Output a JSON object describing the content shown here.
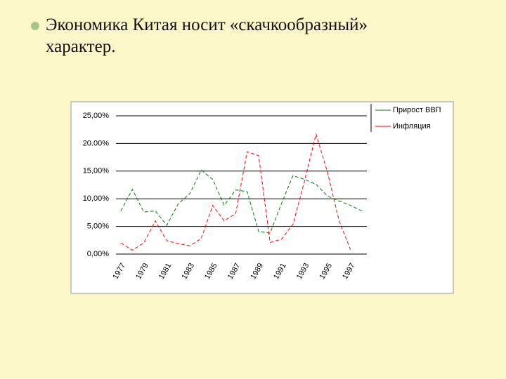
{
  "slide": {
    "bullet": "Экономика Китая носит «скачкообразный» характер."
  },
  "chart_data": {
    "type": "line",
    "categories": [
      "1977",
      null,
      "1979",
      null,
      "1981",
      null,
      "1983",
      null,
      "1985",
      null,
      "1987",
      null,
      "1989",
      null,
      "1991",
      null,
      "1993",
      null,
      "1995",
      null,
      "1997",
      null
    ],
    "series": [
      {
        "name": "Прирост ВВП",
        "color": "#008000",
        "values": [
          7.8,
          11.7,
          7.6,
          7.8,
          5.2,
          9.1,
          10.9,
          15.2,
          13.5,
          8.8,
          11.6,
          11.3,
          4.1,
          3.8,
          9.2,
          14.2,
          13.5,
          12.6,
          10.5,
          9.6,
          8.8,
          7.8
        ]
      },
      {
        "name": "Инфляция",
        "color": "#ff0000",
        "values": [
          2.0,
          0.7,
          2.0,
          6.0,
          2.4,
          1.9,
          1.5,
          2.8,
          8.8,
          6.0,
          7.3,
          18.5,
          17.8,
          2.1,
          2.7,
          5.4,
          13.2,
          21.7,
          14.8,
          6.1,
          0.8,
          null
        ]
      }
    ],
    "ylim": [
      0,
      25
    ],
    "yticks": [
      {
        "value": 0,
        "label": "0,00%"
      },
      {
        "value": 5,
        "label": "5,00%"
      },
      {
        "value": 10,
        "label": "10,00%"
      },
      {
        "value": 15,
        "label": "15,00%"
      },
      {
        "value": 20,
        "label": "20.00%"
      },
      {
        "value": 25,
        "label": "25,00%"
      }
    ],
    "grid": true,
    "line_style": "dashed",
    "legend": "right"
  }
}
